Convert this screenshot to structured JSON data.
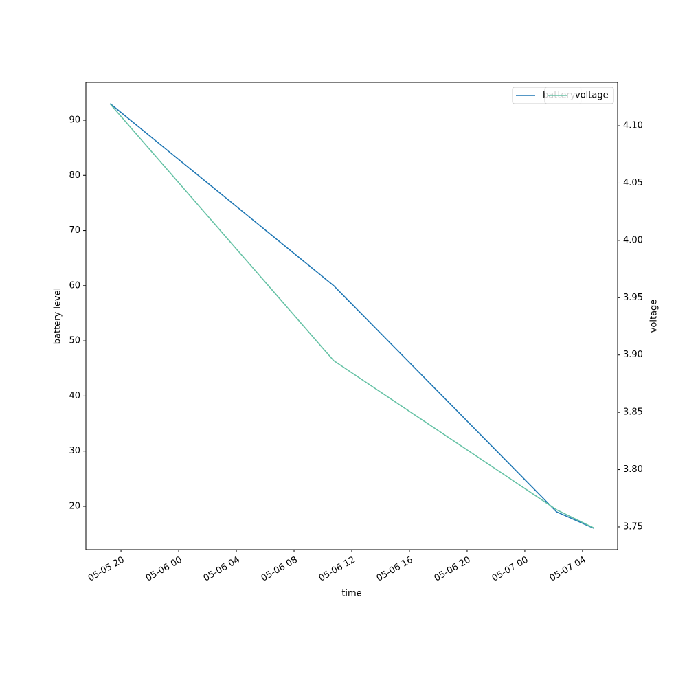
{
  "chart_data": {
    "type": "line",
    "x_label": "time",
    "y_label": "battery level",
    "y2_label": "voltage",
    "x": [
      "05-05 19:15",
      "05-06 10:45",
      "05-07 02:12",
      "05-07 04:48"
    ],
    "xlim": [
      "05-05 17:34",
      "05-07 06:26"
    ],
    "xticks": [
      "05-05 20",
      "05-06 00",
      "05-06 04",
      "05-06 08",
      "05-06 12",
      "05-06 16",
      "05-06 20",
      "05-07 00",
      "05-07 04"
    ],
    "series": [
      {
        "name": "battery",
        "color": "#1f77b4",
        "values": [
          93,
          60,
          19,
          16
        ]
      },
      {
        "name": "voltage",
        "color": "#66c2a5",
        "axis": "y2",
        "values": [
          4.119,
          3.895,
          3.765,
          3.749
        ]
      }
    ],
    "ylim": [
      12.15,
      96.85
    ],
    "yticks": [
      20,
      30,
      40,
      50,
      60,
      70,
      80,
      90
    ],
    "y2lim": [
      3.7302,
      4.1378
    ],
    "y2ticks": [
      {
        "value": 3.75,
        "label": "3.75"
      },
      {
        "value": 3.8,
        "label": "3.80"
      },
      3.85,
      {
        "value": 3.9,
        "label": "3.90"
      },
      3.95,
      {
        "value": 4.0,
        "label": "4.00"
      },
      4.05,
      {
        "value": 4.1,
        "label": "4.10"
      }
    ],
    "legend": "upper right"
  }
}
